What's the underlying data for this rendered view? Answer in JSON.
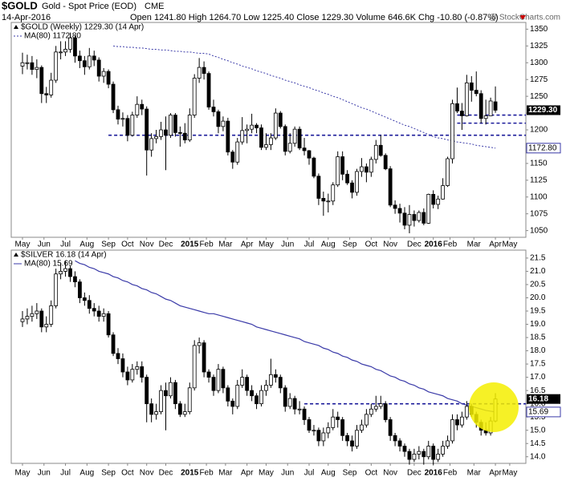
{
  "header": {
    "symbol": "$GOLD",
    "name": "Gold - Spot Price (EOD)",
    "exchange": "CME",
    "date": "14-Apr-2016",
    "quote": "Open 1241.80 High 1264.70 Low 1225.40 Close 1229.30 Volume 646.6K Chg -10.80 (-0.87%)",
    "copyright": "@ StockCharts.com"
  },
  "chart_data": [
    {
      "type": "candlestick",
      "legend": "$GOLD (Weekly) 1229.30 (14 Apr)",
      "ma_legend": "MA(80) 1172.80",
      "last_label": "1229.30",
      "ma_label": "1172.80",
      "color": "#000000",
      "ma_color": "#3a3aa8",
      "ma_dash": true,
      "ylim": [
        1040,
        1360
      ],
      "yticks": [
        1050,
        1075,
        1100,
        1125,
        1150,
        1175,
        1200,
        1225,
        1250,
        1275,
        1300,
        1325,
        1350
      ],
      "xticks": [
        {
          "value": 0,
          "label": "May"
        },
        {
          "value": 4.5,
          "label": "Jun"
        },
        {
          "value": 9,
          "label": "Jul"
        },
        {
          "value": 13.5,
          "label": "Aug"
        },
        {
          "value": 18,
          "label": "Sep"
        },
        {
          "value": 22,
          "label": "Oct"
        },
        {
          "value": 26,
          "label": "Nov"
        },
        {
          "value": 30,
          "label": "Dec"
        },
        {
          "value": 35,
          "label": "2015"
        },
        {
          "value": 38.5,
          "label": "Feb"
        },
        {
          "value": 42.5,
          "label": "Mar"
        },
        {
          "value": 47,
          "label": "Apr"
        },
        {
          "value": 51,
          "label": "May"
        },
        {
          "value": 55.5,
          "label": "Jun"
        },
        {
          "value": 60,
          "label": "Jul"
        },
        {
          "value": 64,
          "label": "Aug"
        },
        {
          "value": 68.5,
          "label": "Sep"
        },
        {
          "value": 73,
          "label": "Oct"
        },
        {
          "value": 77,
          "label": "Nov"
        },
        {
          "value": 82,
          "label": "Dec"
        },
        {
          "value": 86,
          "label": "2016"
        },
        {
          "value": 89.5,
          "label": "Feb"
        },
        {
          "value": 94.5,
          "label": "Mar"
        },
        {
          "value": 99,
          "label": "Apr"
        },
        {
          "value": 102,
          "label": "May"
        }
      ],
      "levels": [
        {
          "value": 1192,
          "start": 18
        },
        {
          "value": 1222,
          "start": 91
        },
        {
          "value": 1210,
          "start": 91
        }
      ],
      "open": [
        1295,
        1300,
        1300,
        1290,
        1293,
        1254,
        1252,
        1274,
        1316,
        1316,
        1320,
        1337,
        1310,
        1303,
        1294,
        1310,
        1304,
        1280,
        1287,
        1268,
        1230,
        1216,
        1217,
        1192,
        1222,
        1238,
        1231,
        1170,
        1187,
        1190,
        1200,
        1192,
        1222,
        1196,
        1195,
        1185,
        1222,
        1277,
        1293,
        1284,
        1234,
        1227,
        1205,
        1213,
        1167,
        1152,
        1182,
        1199,
        1201,
        1207,
        1203,
        1174,
        1178,
        1188,
        1225,
        1205,
        1168,
        1180,
        1201,
        1173,
        1169,
        1158,
        1131,
        1098,
        1094,
        1094,
        1118,
        1160,
        1134,
        1121,
        1107,
        1138,
        1145,
        1137,
        1156,
        1177,
        1162,
        1142,
        1088,
        1083,
        1076,
        1058,
        1074,
        1065,
        1077,
        1061,
        1104,
        1089,
        1097,
        1117,
        1157,
        1239,
        1228,
        1221,
        1270,
        1259,
        1254,
        1217,
        1221,
        1241.8
      ],
      "high": [
        1315,
        1312,
        1310,
        1305,
        1296,
        1264,
        1285,
        1325,
        1332,
        1332,
        1345,
        1340,
        1318,
        1310,
        1322,
        1318,
        1308,
        1292,
        1290,
        1272,
        1236,
        1226,
        1222,
        1227,
        1250,
        1245,
        1235,
        1195,
        1200,
        1212,
        1220,
        1225,
        1225,
        1205,
        1210,
        1232,
        1283,
        1307,
        1302,
        1287,
        1245,
        1230,
        1220,
        1218,
        1170,
        1188,
        1219,
        1208,
        1224,
        1210,
        1208,
        1195,
        1195,
        1232,
        1228,
        1208,
        1195,
        1205,
        1205,
        1188,
        1170,
        1160,
        1135,
        1108,
        1105,
        1122,
        1168,
        1168,
        1140,
        1125,
        1142,
        1158,
        1150,
        1160,
        1185,
        1192,
        1165,
        1146,
        1095,
        1090,
        1085,
        1088,
        1080,
        1080,
        1083,
        1105,
        1110,
        1102,
        1128,
        1160,
        1245,
        1263,
        1240,
        1282,
        1280,
        1287,
        1259,
        1245,
        1248,
        1264.7
      ],
      "low": [
        1283,
        1290,
        1282,
        1277,
        1240,
        1240,
        1248,
        1270,
        1305,
        1310,
        1315,
        1300,
        1292,
        1282,
        1290,
        1295,
        1272,
        1270,
        1262,
        1225,
        1208,
        1205,
        1183,
        1190,
        1218,
        1222,
        1132,
        1160,
        1180,
        1185,
        1140,
        1188,
        1190,
        1175,
        1180,
        1182,
        1218,
        1270,
        1275,
        1230,
        1220,
        1195,
        1198,
        1162,
        1142,
        1148,
        1178,
        1180,
        1195,
        1195,
        1170,
        1170,
        1170,
        1185,
        1202,
        1162,
        1165,
        1175,
        1170,
        1162,
        1148,
        1128,
        1088,
        1072,
        1077,
        1088,
        1115,
        1125,
        1118,
        1098,
        1102,
        1130,
        1122,
        1130,
        1150,
        1160,
        1140,
        1085,
        1075,
        1062,
        1052,
        1046,
        1056,
        1062,
        1058,
        1060,
        1083,
        1082,
        1096,
        1115,
        1150,
        1225,
        1200,
        1220,
        1242,
        1250,
        1210,
        1208,
        1223,
        1225.4
      ],
      "close": [
        1300,
        1300,
        1290,
        1293,
        1254,
        1252,
        1274,
        1316,
        1316,
        1320,
        1337,
        1310,
        1303,
        1294,
        1310,
        1304,
        1280,
        1287,
        1268,
        1230,
        1216,
        1217,
        1192,
        1222,
        1238,
        1231,
        1170,
        1187,
        1190,
        1200,
        1192,
        1222,
        1196,
        1195,
        1185,
        1222,
        1277,
        1293,
        1284,
        1234,
        1227,
        1205,
        1213,
        1167,
        1152,
        1182,
        1199,
        1201,
        1207,
        1203,
        1174,
        1178,
        1188,
        1225,
        1205,
        1168,
        1180,
        1201,
        1173,
        1169,
        1158,
        1131,
        1098,
        1094,
        1094,
        1118,
        1160,
        1134,
        1121,
        1107,
        1138,
        1145,
        1137,
        1156,
        1177,
        1162,
        1142,
        1088,
        1083,
        1076,
        1058,
        1074,
        1065,
        1077,
        1061,
        1104,
        1089,
        1097,
        1117,
        1157,
        1239,
        1228,
        1221,
        1270,
        1259,
        1254,
        1217,
        1221,
        1243,
        1229.3
      ],
      "ma": [
        null,
        null,
        null,
        null,
        null,
        null,
        null,
        null,
        null,
        null,
        null,
        null,
        null,
        null,
        null,
        null,
        null,
        null,
        null,
        1325,
        1324,
        1324,
        1323,
        1323,
        1322,
        1322,
        1321,
        1320,
        1320,
        1319,
        1319,
        1318,
        1317,
        1317,
        1316,
        1316,
        1315,
        1314,
        1314,
        1313,
        1310,
        1308,
        1305,
        1303,
        1300,
        1298,
        1295,
        1293,
        1291,
        1288,
        1286,
        1284,
        1281,
        1279,
        1277,
        1274,
        1272,
        1270,
        1267,
        1265,
        1263,
        1260,
        1258,
        1255,
        1253,
        1250,
        1248,
        1245,
        1242,
        1239,
        1236,
        1233,
        1231,
        1228,
        1225,
        1222,
        1219,
        1216,
        1213,
        1210,
        1207,
        1205,
        1202,
        1199,
        1196,
        1193,
        1190,
        1188,
        1187,
        1185,
        1184,
        1182,
        1181,
        1180,
        1179,
        1177,
        1176,
        1175,
        1174,
        1172.8
      ]
    },
    {
      "type": "candlestick",
      "legend": "$SILVER 16.18 (14 Apr)",
      "ma_legend": "MA(80) 15.69",
      "last_label": "16.18",
      "ma_label": "15.69",
      "color": "#000000",
      "ma_color": "#3a3aa8",
      "ma_dash": false,
      "ylim": [
        13.75,
        21.8
      ],
      "yticks": [
        {
          "value": 14,
          "label": "14.0"
        },
        14.5,
        {
          "value": 15,
          "label": "15.0"
        },
        15.5,
        {
          "value": 16,
          "label": "16.0"
        },
        16.5,
        {
          "value": 17,
          "label": "17.0"
        },
        17.5,
        {
          "value": 18,
          "label": "18.0"
        },
        18.5,
        {
          "value": 19,
          "label": "19.0"
        },
        19.5,
        {
          "value": 20,
          "label": "20.0"
        },
        20.5,
        {
          "value": 21,
          "label": "21.0"
        },
        21.5
      ],
      "xticks": [
        {
          "value": 0,
          "label": "May"
        },
        {
          "value": 4.5,
          "label": "Jun"
        },
        {
          "value": 9,
          "label": "Jul"
        },
        {
          "value": 13.5,
          "label": "Aug"
        },
        {
          "value": 18,
          "label": "Sep"
        },
        {
          "value": 22,
          "label": "Oct"
        },
        {
          "value": 26,
          "label": "Nov"
        },
        {
          "value": 30,
          "label": "Dec"
        },
        {
          "value": 35,
          "label": "2015"
        },
        {
          "value": 38.5,
          "label": "Feb"
        },
        {
          "value": 42.5,
          "label": "Mar"
        },
        {
          "value": 47,
          "label": "Apr"
        },
        {
          "value": 51,
          "label": "May"
        },
        {
          "value": 55.5,
          "label": "Jun"
        },
        {
          "value": 60,
          "label": "Jul"
        },
        {
          "value": 64,
          "label": "Aug"
        },
        {
          "value": 68.5,
          "label": "Sep"
        },
        {
          "value": 73,
          "label": "Oct"
        },
        {
          "value": 77,
          "label": "Nov"
        },
        {
          "value": 82,
          "label": "Dec"
        },
        {
          "value": 86,
          "label": "2016"
        },
        {
          "value": 89.5,
          "label": "Feb"
        },
        {
          "value": 94.5,
          "label": "Mar"
        },
        {
          "value": 99,
          "label": "Apr"
        },
        {
          "value": 102,
          "label": "May"
        }
      ],
      "levels": [
        {
          "value": 16,
          "start": 59
        }
      ],
      "open": [
        19.1,
        19.2,
        19.3,
        19.4,
        19.5,
        18.9,
        19.0,
        19.7,
        20.9,
        21.0,
        21.1,
        20.8,
        20.6,
        20.0,
        19.9,
        19.6,
        19.5,
        19.3,
        19.4,
        18.6,
        17.9,
        17.7,
        17.2,
        16.9,
        17.3,
        17.4,
        17.0,
        16.0,
        15.6,
        15.7,
        16.5,
        16.3,
        16.8,
        16.0,
        15.6,
        15.7,
        16.6,
        18.2,
        18.3,
        17.2,
        17.0,
        16.5,
        17.3,
        16.6,
        16.1,
        15.9,
        16.7,
        17.0,
        16.5,
        16.3,
        16.0,
        16.5,
        16.7,
        17.1,
        17.0,
        16.6,
        15.9,
        16.2,
        15.8,
        15.8,
        15.4,
        15.0,
        15.0,
        14.6,
        14.9,
        15.1,
        15.5,
        15.4,
        14.8,
        14.6,
        14.4,
        15.0,
        15.2,
        15.6,
        15.8,
        15.9,
        16.0,
        15.4,
        14.8,
        14.6,
        14.4,
        14.2,
        13.9,
        14.1,
        14.2,
        14.0,
        14.4,
        13.9,
        14.1,
        14.4,
        14.6,
        15.4,
        15.2,
        15.5,
        15.9,
        15.6,
        15.3,
        15.0,
        14.9,
        15.35
      ],
      "high": [
        19.5,
        19.6,
        19.7,
        19.8,
        19.6,
        19.3,
        19.9,
        21.1,
        21.3,
        21.4,
        21.2,
        21.0,
        20.7,
        20.2,
        20.1,
        19.8,
        19.7,
        19.6,
        19.5,
        18.7,
        18.1,
        17.9,
        17.4,
        17.5,
        17.6,
        17.6,
        17.1,
        16.2,
        16.0,
        16.7,
        16.8,
        17.0,
        16.9,
        16.1,
        16.0,
        16.8,
        18.4,
        18.5,
        18.4,
        17.3,
        17.1,
        17.5,
        17.4,
        16.7,
        16.2,
        16.9,
        17.3,
        17.1,
        16.7,
        16.4,
        16.7,
        16.9,
        17.7,
        17.3,
        17.1,
        16.7,
        16.4,
        16.3,
        16.1,
        15.9,
        15.5,
        15.2,
        15.1,
        15.1,
        15.3,
        15.8,
        15.7,
        15.5,
        14.9,
        14.8,
        15.2,
        15.4,
        15.8,
        16.0,
        16.3,
        16.3,
        16.1,
        15.5,
        14.9,
        14.7,
        14.5,
        14.3,
        14.3,
        14.4,
        14.3,
        14.6,
        14.5,
        14.3,
        14.6,
        14.8,
        15.6,
        15.6,
        15.7,
        16.1,
        16.0,
        15.7,
        15.4,
        15.3,
        15.5,
        16.4
      ],
      "low": [
        18.9,
        19.0,
        19.1,
        19.2,
        18.7,
        18.7,
        18.9,
        19.6,
        20.7,
        20.8,
        20.6,
        20.4,
        19.8,
        19.7,
        19.4,
        19.3,
        19.1,
        19.1,
        18.5,
        17.8,
        17.5,
        17.0,
        16.7,
        16.8,
        17.1,
        16.8,
        15.3,
        15.3,
        15.4,
        15.6,
        15.0,
        16.2,
        15.8,
        15.5,
        15.5,
        15.6,
        16.5,
        17.9,
        17.0,
        16.8,
        16.3,
        16.4,
        16.4,
        15.9,
        15.6,
        15.8,
        16.6,
        16.3,
        16.1,
        15.8,
        15.9,
        16.3,
        16.6,
        16.8,
        16.4,
        15.7,
        15.8,
        15.6,
        15.6,
        15.2,
        14.9,
        14.8,
        14.4,
        14.4,
        14.7,
        15.0,
        15.1,
        14.6,
        14.4,
        14.2,
        14.3,
        14.9,
        15.1,
        15.5,
        15.7,
        15.8,
        15.3,
        14.6,
        14.4,
        14.2,
        14.0,
        13.7,
        13.8,
        13.9,
        13.7,
        13.9,
        13.7,
        13.8,
        14.0,
        14.3,
        14.5,
        15.0,
        15.1,
        15.4,
        15.5,
        15.1,
        14.8,
        14.8,
        14.8,
        15.3
      ],
      "close": [
        19.2,
        19.3,
        19.4,
        19.5,
        18.9,
        19.0,
        19.7,
        20.9,
        21.0,
        21.1,
        20.8,
        20.6,
        20.0,
        19.9,
        19.6,
        19.5,
        19.3,
        19.4,
        18.6,
        17.9,
        17.7,
        17.2,
        16.9,
        17.3,
        17.4,
        17.0,
        16.0,
        15.6,
        15.7,
        16.5,
        16.3,
        16.8,
        16.0,
        15.6,
        15.7,
        16.6,
        18.2,
        18.3,
        17.2,
        17.0,
        16.5,
        17.3,
        16.6,
        16.1,
        15.9,
        16.7,
        17.0,
        16.5,
        16.3,
        16.0,
        16.5,
        16.7,
        17.1,
        17.0,
        16.6,
        15.9,
        16.2,
        15.8,
        15.8,
        15.4,
        15.0,
        15.0,
        14.6,
        14.9,
        15.1,
        15.5,
        15.4,
        14.8,
        14.6,
        14.4,
        15.0,
        15.2,
        15.6,
        15.8,
        15.9,
        16.0,
        15.4,
        14.8,
        14.6,
        14.4,
        14.2,
        13.9,
        14.1,
        14.2,
        14.0,
        14.4,
        13.9,
        14.1,
        14.4,
        14.6,
        15.4,
        15.2,
        15.5,
        15.9,
        15.6,
        15.3,
        15.0,
        14.9,
        15.35,
        16.18
      ],
      "ma": [
        null,
        null,
        null,
        null,
        null,
        null,
        null,
        null,
        null,
        null,
        null,
        21.4,
        21.3,
        21.25,
        21.15,
        21.1,
        21.0,
        20.95,
        20.9,
        20.8,
        20.75,
        20.65,
        20.6,
        20.5,
        20.45,
        20.35,
        20.3,
        20.2,
        20.15,
        20.05,
        19.95,
        19.9,
        19.8,
        19.7,
        19.65,
        19.6,
        19.55,
        19.5,
        19.45,
        19.4,
        19.4,
        19.35,
        19.3,
        19.25,
        19.2,
        19.15,
        19.1,
        19.05,
        19.0,
        18.9,
        18.85,
        18.8,
        18.75,
        18.7,
        18.65,
        18.6,
        18.55,
        18.5,
        18.45,
        18.35,
        18.3,
        18.25,
        18.2,
        18.1,
        18.05,
        17.95,
        17.9,
        17.8,
        17.75,
        17.65,
        17.6,
        17.5,
        17.45,
        17.4,
        17.3,
        17.25,
        17.15,
        17.05,
        17.0,
        16.9,
        16.85,
        16.75,
        16.7,
        16.6,
        16.55,
        16.45,
        16.4,
        16.35,
        16.3,
        16.2,
        16.15,
        16.1,
        16.0,
        15.95,
        15.9,
        15.85,
        15.8,
        15.75,
        15.72,
        15.69
      ]
    }
  ]
}
